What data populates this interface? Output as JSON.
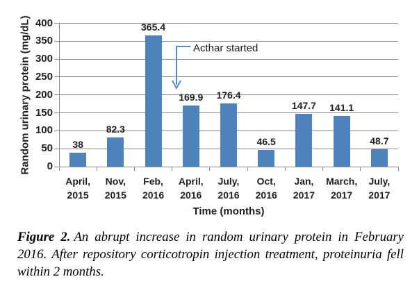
{
  "chart_data": {
    "type": "bar",
    "title": "",
    "ylabel": "Random urinary protein (mg/dL)",
    "xlabel": "Time (months)",
    "ylim": [
      0,
      400
    ],
    "ytick_step": 50,
    "grid": true,
    "categories": [
      "April, 2015",
      "Nov, 2015",
      "Feb, 2016",
      "April, 2016",
      "July, 2016",
      "Oct, 2016",
      "Jan, 2017",
      "March, 2017",
      "July, 2017"
    ],
    "values": [
      38,
      82.3,
      365.4,
      169.9,
      176.4,
      46.5,
      147.7,
      141.1,
      48.7
    ],
    "bar_color": "#4d82bc",
    "gridline_color": "#8a8a8a",
    "label_color": "#1f1f1f",
    "annotation": {
      "text": "Acthar started",
      "arrow_color": "#548ac6",
      "points_at_category": "April, 2016"
    }
  },
  "caption": {
    "label": "Figure 2.",
    "text": "An abrupt increase in random urinary protein in February 2016. After repository corticotropin injection treatment, proteinuria fell within 2 months."
  }
}
